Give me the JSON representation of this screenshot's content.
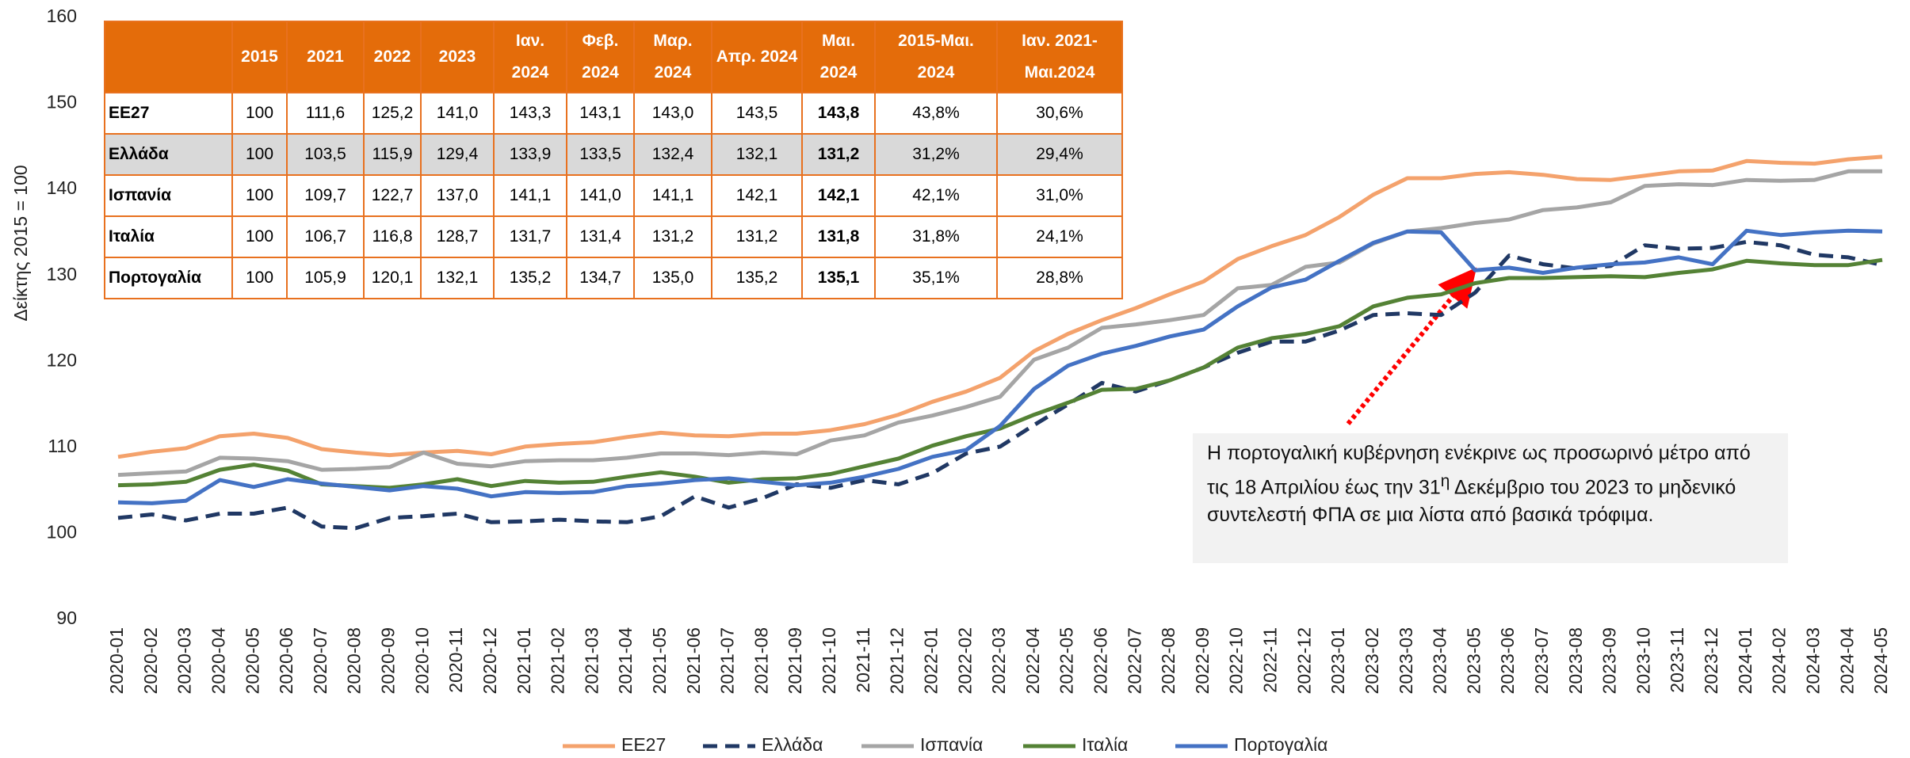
{
  "chart_data": {
    "type": "line",
    "y_label": "Δείκτης 2015 = 100",
    "ylim": [
      90,
      160
    ],
    "yticks": [
      90,
      100,
      110,
      120,
      130,
      140,
      150,
      160
    ],
    "x": [
      "2020-01",
      "2020-02",
      "2020-03",
      "2020-04",
      "2020-05",
      "2020-06",
      "2020-07",
      "2020-08",
      "2020-09",
      "2020-10",
      "2020-11",
      "2020-12",
      "2021-01",
      "2021-02",
      "2021-03",
      "2021-04",
      "2021-05",
      "2021-06",
      "2021-07",
      "2021-08",
      "2021-09",
      "2021-10",
      "2021-11",
      "2021-12",
      "2022-01",
      "2022-02",
      "2022-03",
      "2022-04",
      "2022-05",
      "2022-06",
      "2022-07",
      "2022-08",
      "2022-09",
      "2022-10",
      "2022-11",
      "2022-12",
      "2023-01",
      "2023-02",
      "2023-03",
      "2023-04",
      "2023-05",
      "2023-06",
      "2023-07",
      "2023-08",
      "2023-09",
      "2023-10",
      "2023-11",
      "2023-12",
      "2024-01",
      "2024-02",
      "2024-03",
      "2024-04",
      "2024-05"
    ],
    "series": [
      {
        "name": "ΕΕ27",
        "color": "#f4a26c",
        "line_style": "solid",
        "values": [
          108.9,
          109.5,
          109.9,
          111.3,
          111.6,
          111.1,
          109.8,
          109.4,
          109.1,
          109.4,
          109.6,
          109.2,
          110.1,
          110.4,
          110.6,
          111.2,
          111.7,
          111.4,
          111.3,
          111.6,
          111.6,
          112.0,
          112.7,
          113.8,
          115.3,
          116.5,
          118.1,
          121.2,
          123.2,
          124.8,
          126.2,
          127.8,
          129.3,
          131.9,
          133.4,
          134.7,
          136.8,
          139.4,
          141.3,
          141.3,
          141.8,
          142.0,
          141.7,
          141.2,
          141.1,
          141.6,
          142.1,
          142.2,
          143.3,
          143.1,
          143.0,
          143.5,
          143.8
        ]
      },
      {
        "name": "Ελλάδα",
        "color": "#203864",
        "line_style": "dashed",
        "values": [
          101.8,
          102.2,
          101.5,
          102.3,
          102.3,
          103.0,
          100.8,
          100.6,
          101.8,
          102.0,
          102.3,
          101.3,
          101.4,
          101.6,
          101.4,
          101.3,
          102.0,
          104.3,
          103.0,
          104.1,
          105.7,
          105.3,
          106.2,
          105.7,
          107.0,
          109.3,
          110.1,
          112.6,
          115.0,
          117.5,
          116.5,
          117.8,
          119.3,
          121.0,
          122.3,
          122.3,
          123.6,
          125.4,
          125.6,
          125.4,
          128.0,
          132.3,
          131.3,
          130.8,
          131.1,
          133.5,
          133.1,
          133.2,
          133.9,
          133.5,
          132.4,
          132.1,
          131.2
        ]
      },
      {
        "name": "Ισπανία",
        "color": "#a5a5a5",
        "line_style": "solid",
        "values": [
          106.8,
          107.0,
          107.2,
          108.8,
          108.7,
          108.4,
          107.4,
          107.5,
          107.7,
          109.4,
          108.1,
          107.8,
          108.4,
          108.5,
          108.5,
          108.8,
          109.3,
          109.3,
          109.1,
          109.4,
          109.2,
          110.8,
          111.4,
          112.9,
          113.7,
          114.7,
          115.9,
          120.2,
          121.6,
          123.9,
          124.3,
          124.8,
          125.4,
          128.5,
          128.9,
          131.0,
          131.5,
          133.7,
          135.1,
          135.5,
          136.1,
          136.5,
          137.6,
          137.9,
          138.5,
          140.4,
          140.6,
          140.5,
          141.1,
          141.0,
          141.1,
          142.1,
          142.1
        ]
      },
      {
        "name": "Ιταλία",
        "color": "#548235",
        "line_style": "solid",
        "values": [
          105.6,
          105.7,
          106.0,
          107.4,
          108.0,
          107.3,
          105.7,
          105.5,
          105.3,
          105.7,
          106.3,
          105.5,
          106.1,
          105.9,
          106.0,
          106.6,
          107.1,
          106.6,
          105.9,
          106.3,
          106.4,
          106.9,
          107.8,
          108.7,
          110.2,
          111.3,
          112.2,
          113.8,
          115.2,
          116.7,
          116.8,
          117.8,
          119.3,
          121.6,
          122.7,
          123.2,
          124.1,
          126.4,
          127.4,
          127.8,
          129.1,
          129.7,
          129.7,
          129.8,
          129.9,
          129.8,
          130.3,
          130.7,
          131.7,
          131.4,
          131.2,
          131.2,
          131.8
        ]
      },
      {
        "name": "Πορτογαλία",
        "color": "#4472c4",
        "line_style": "solid",
        "values": [
          103.6,
          103.5,
          103.8,
          106.2,
          105.4,
          106.3,
          105.8,
          105.4,
          105.0,
          105.5,
          105.2,
          104.3,
          104.8,
          104.7,
          104.8,
          105.5,
          105.8,
          106.2,
          106.4,
          106.0,
          105.6,
          105.9,
          106.6,
          107.5,
          108.9,
          109.7,
          112.5,
          116.8,
          119.5,
          120.9,
          121.8,
          122.9,
          123.7,
          126.4,
          128.6,
          129.5,
          131.7,
          133.8,
          135.1,
          135.0,
          130.6,
          130.9,
          130.3,
          130.9,
          131.3,
          131.5,
          132.1,
          131.3,
          135.2,
          134.7,
          135.0,
          135.2,
          135.1
        ]
      }
    ]
  },
  "table": {
    "columns": [
      "2015",
      "2021",
      "2022",
      "2023",
      "Ιαν. 2024",
      "Φεβ. 2024",
      "Μαρ. 2024",
      "Απρ. 2024",
      "Μαι. 2024",
      "2015-Μαι. 2024",
      "Ιαν. 2021-Μαι.2024"
    ],
    "rows": [
      {
        "label": "ΕΕ27",
        "cells": [
          "100",
          "111,6",
          "125,2",
          "141,0",
          "143,3",
          "143,1",
          "143,0",
          "143,5",
          "143,8",
          "43,8%",
          "30,6%"
        ]
      },
      {
        "label": "Ελλάδα",
        "cells": [
          "100",
          "103,5",
          "115,9",
          "129,4",
          "133,9",
          "133,5",
          "132,4",
          "132,1",
          "131,2",
          "31,2%",
          "29,4%"
        ]
      },
      {
        "label": "Ισπανία",
        "cells": [
          "100",
          "109,7",
          "122,7",
          "137,0",
          "141,1",
          "141,0",
          "141,1",
          "142,1",
          "142,1",
          "42,1%",
          "31,0%"
        ]
      },
      {
        "label": "Ιταλία",
        "cells": [
          "100",
          "106,7",
          "116,8",
          "128,7",
          "131,7",
          "131,4",
          "131,2",
          "131,2",
          "131,8",
          "31,8%",
          "24,1%"
        ]
      },
      {
        "label": "Πορτογαλία",
        "cells": [
          "100",
          "105,9",
          "120,1",
          "132,1",
          "135,2",
          "134,7",
          "135,0",
          "135,2",
          "135,1",
          "35,1%",
          "28,8%"
        ]
      }
    ]
  },
  "annotation": {
    "text_before": "Η πορτογαλική κυβέρνηση ενέκρινε ως προσωρινό μέτρο από τις 18 Απριλίου έως την 31",
    "superscript": "η",
    "text_after": " Δεκέμβριο του 2023 το μηδενικό συντελεστή ΦΠΑ σε μια λίστα από βασικά τρόφιμα."
  }
}
